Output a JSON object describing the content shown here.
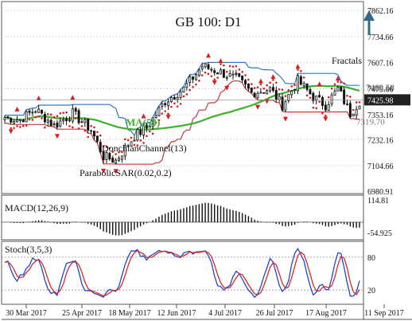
{
  "chart_data": {
    "type": "candlestick",
    "title": "GB 100: D1",
    "x_ticks": [
      "30 Mar 2017",
      "25 Apr 2017",
      "18 May 2017",
      "12 Jun 2017",
      "4 Jul 2017",
      "26 Jul 2017",
      "17 Aug 2017",
      "11 Sep 2017"
    ],
    "price_axis": {
      "ticks": [
        "7862.16",
        "7734.66",
        "7607.16",
        "7479.66",
        "7353.16",
        "7232.16",
        "7104.66",
        "6980.91"
      ],
      "ylim": [
        6980.91,
        7862.16
      ]
    },
    "price_labels": {
      "current": "7425.98",
      "upper": "7460.58",
      "lower": "7319.70",
      "hidden_tick": "7483.41"
    },
    "annotations": {
      "fractals": "Fractals",
      "ma": "MA(50)",
      "donchian": "DonchianChannel(13)",
      "sar": "ParabolicSAR(0.02,0.2)"
    },
    "macd": {
      "label": "MACD(12,26,9)",
      "ticks": [
        "114.81",
        "-54.925"
      ],
      "ylim": [
        -80,
        130
      ]
    },
    "stoch": {
      "label": "Stoch(3,5,3)",
      "ticks": [
        "80",
        "20"
      ],
      "ylim": [
        0,
        100
      ]
    },
    "colors": {
      "candle": "#111111",
      "ma": "#3fae2a",
      "donchian": "#2e79c8",
      "sar": "#d62020",
      "stoch_k": "#2445c8",
      "stoch_d": "#d42a2a",
      "arrow": "#2f6b86",
      "current_badge": "#222222"
    },
    "signal": "up-arrow-icon"
  }
}
